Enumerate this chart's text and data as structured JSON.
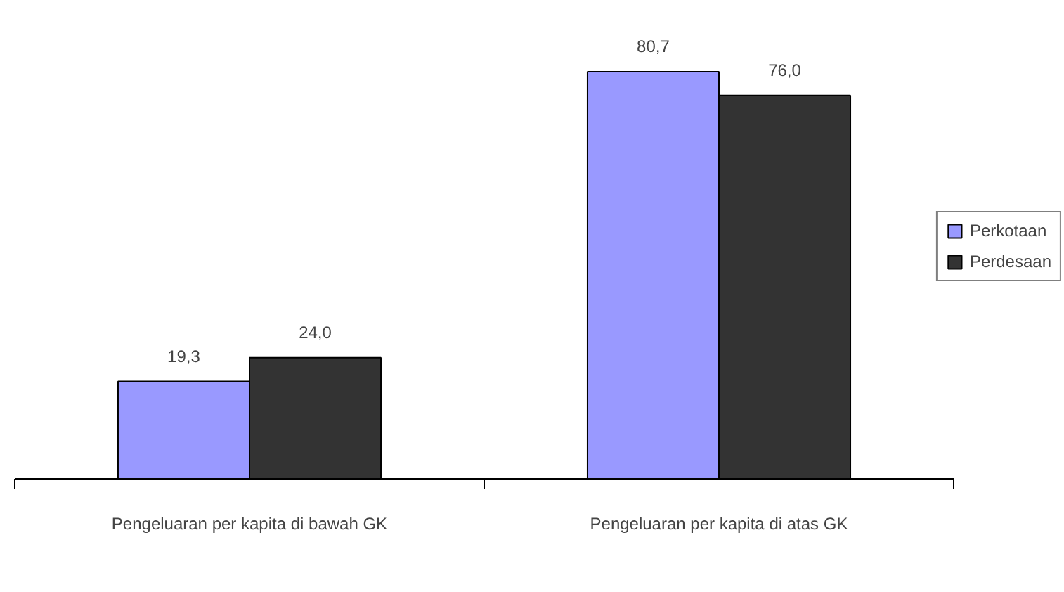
{
  "chart_data": {
    "type": "bar",
    "categories": [
      "Pengeluaran per kapita di bawah GK",
      "Pengeluaran per kapita di atas GK"
    ],
    "series": [
      {
        "name": "Perkotaan",
        "color": "#9999ff",
        "values": [
          19.3,
          80.7
        ],
        "value_labels": [
          "19,3",
          "80,7"
        ]
      },
      {
        "name": "Perdesaan",
        "color": "#333333",
        "values": [
          24.0,
          76.0
        ],
        "value_labels": [
          "24,0",
          "76,0"
        ]
      }
    ],
    "legend": "right",
    "grid": false
  }
}
